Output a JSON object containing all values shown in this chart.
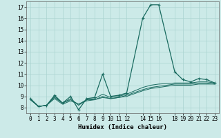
{
  "xlabel": "Humidex (Indice chaleur)",
  "bg_color": "#cceae8",
  "grid_color": "#aad4d0",
  "line_color": "#1a6b60",
  "xlim": [
    -0.5,
    23.5
  ],
  "ylim": [
    7.5,
    17.5
  ],
  "xticks": [
    0,
    1,
    2,
    3,
    4,
    5,
    6,
    7,
    8,
    9,
    10,
    11,
    12,
    14,
    15,
    16,
    18,
    19,
    20,
    21,
    22,
    23
  ],
  "yticks": [
    8,
    9,
    10,
    11,
    12,
    13,
    14,
    15,
    16,
    17
  ],
  "series": [
    {
      "x": [
        0,
        1,
        2,
        3,
        4,
        5,
        6,
        7,
        8,
        9,
        10,
        11,
        12,
        14,
        15,
        16,
        18,
        19,
        20,
        21,
        22,
        23
      ],
      "y": [
        8.8,
        8.1,
        8.2,
        9.1,
        8.4,
        9.0,
        7.8,
        8.8,
        8.9,
        11.0,
        9.0,
        9.1,
        9.3,
        16.0,
        17.2,
        17.2,
        11.2,
        10.5,
        10.3,
        10.6,
        10.5,
        10.2
      ]
    },
    {
      "x": [
        0,
        1,
        2,
        3,
        4,
        5,
        6,
        7,
        8,
        9,
        10,
        11,
        12,
        14,
        15,
        16,
        18,
        19,
        20,
        21,
        22,
        23
      ],
      "y": [
        8.7,
        8.1,
        8.2,
        9.0,
        8.4,
        8.8,
        8.2,
        8.7,
        8.8,
        9.2,
        8.9,
        9.0,
        9.2,
        9.8,
        10.0,
        10.1,
        10.2,
        10.2,
        10.2,
        10.3,
        10.3,
        10.2
      ]
    },
    {
      "x": [
        0,
        1,
        2,
        3,
        4,
        5,
        6,
        7,
        8,
        9,
        10,
        11,
        12,
        14,
        15,
        16,
        18,
        19,
        20,
        21,
        22,
        23
      ],
      "y": [
        8.7,
        8.1,
        8.2,
        8.9,
        8.4,
        8.7,
        8.3,
        8.7,
        8.7,
        9.0,
        8.8,
        8.9,
        9.1,
        9.6,
        9.8,
        9.9,
        10.1,
        10.1,
        10.1,
        10.2,
        10.2,
        10.1
      ]
    },
    {
      "x": [
        0,
        1,
        2,
        3,
        4,
        5,
        6,
        7,
        8,
        9,
        10,
        11,
        12,
        14,
        15,
        16,
        18,
        19,
        20,
        21,
        22,
        23
      ],
      "y": [
        8.7,
        8.1,
        8.2,
        8.8,
        8.3,
        8.6,
        8.3,
        8.6,
        8.7,
        8.9,
        8.8,
        8.9,
        9.0,
        9.5,
        9.7,
        9.8,
        10.0,
        10.0,
        10.0,
        10.1,
        10.1,
        10.1
      ]
    }
  ],
  "xtick_labels": [
    "0",
    "1",
    "2",
    "3",
    "4",
    "5",
    "6",
    "7",
    "8",
    "9",
    "10",
    "11",
    "12",
    "14",
    "15",
    "16",
    "18",
    "19",
    "20",
    "21",
    "22",
    "23"
  ],
  "tick_fontsize": 5.5,
  "label_fontsize": 6.5
}
